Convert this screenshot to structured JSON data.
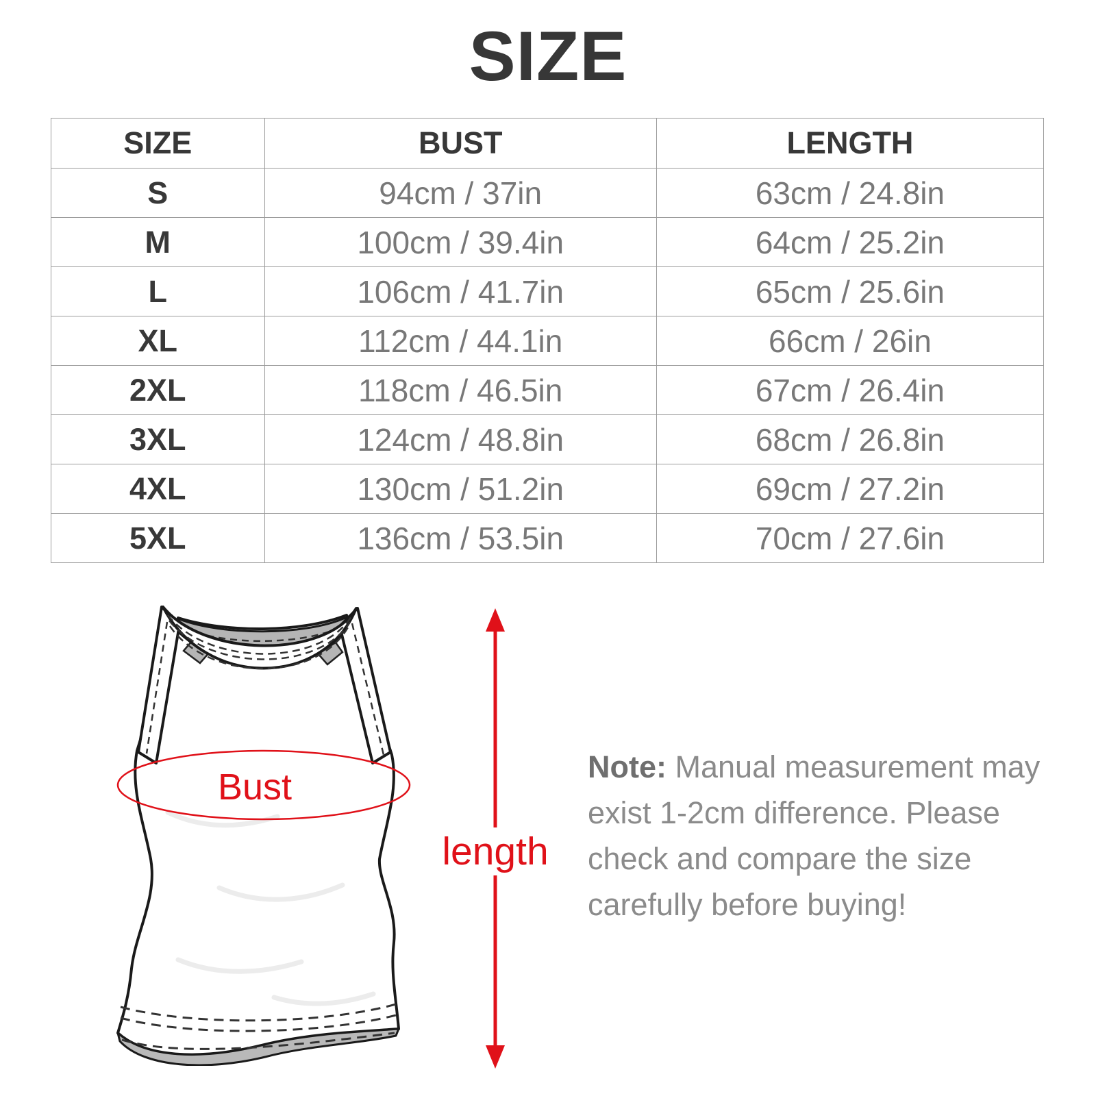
{
  "title": "SIZE",
  "chart_data": {
    "type": "table",
    "title": "SIZE",
    "columns": [
      "SIZE",
      "BUST",
      "LENGTH"
    ],
    "rows": [
      {
        "size": "S",
        "bust": "94cm / 37in",
        "length": "63cm / 24.8in"
      },
      {
        "size": "M",
        "bust": "100cm / 39.4in",
        "length": "64cm / 25.2in"
      },
      {
        "size": "L",
        "bust": "106cm / 41.7in",
        "length": "65cm / 25.6in"
      },
      {
        "size": "XL",
        "bust": "112cm / 44.1in",
        "length": "66cm / 26in"
      },
      {
        "size": "2XL",
        "bust": "118cm / 46.5in",
        "length": "67cm / 26.4in"
      },
      {
        "size": "3XL",
        "bust": "124cm / 48.8in",
        "length": "68cm / 26.8in"
      },
      {
        "size": "4XL",
        "bust": "130cm / 51.2in",
        "length": "69cm / 27.2in"
      },
      {
        "size": "5XL",
        "bust": "136cm / 53.5in",
        "length": "70cm / 27.6in"
      }
    ]
  },
  "diagram": {
    "bust_label": "Bust",
    "length_label": "length",
    "garment": "halter-neck-tank-top-illustration"
  },
  "note": {
    "prefix": "Note:",
    "line1": "Manual measurement may",
    "line2": "exist 1-2cm difference. Please",
    "line3": "check and compare the size",
    "line4": "carefully before buying!"
  },
  "colors": {
    "accent_red": "#e01119",
    "title_text": "#373737",
    "table_header_text": "#383838",
    "table_value_text": "#787878",
    "table_border": "#9b9b9b",
    "note_text": "#8b8b8b",
    "note_prefix_text": "#6f6f6f",
    "garment_gray": "#b5b5b5"
  }
}
